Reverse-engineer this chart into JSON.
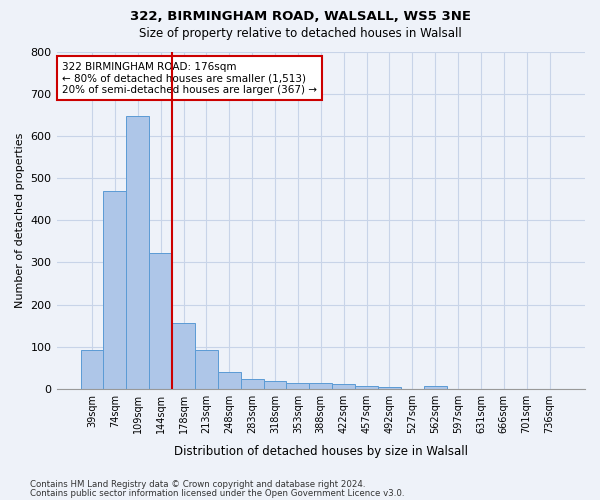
{
  "title1": "322, BIRMINGHAM ROAD, WALSALL, WS5 3NE",
  "title2": "Size of property relative to detached houses in Walsall",
  "xlabel": "Distribution of detached houses by size in Walsall",
  "ylabel": "Number of detached properties",
  "footnote1": "Contains HM Land Registry data © Crown copyright and database right 2024.",
  "footnote2": "Contains public sector information licensed under the Open Government Licence v3.0.",
  "bar_labels": [
    "39sqm",
    "74sqm",
    "109sqm",
    "144sqm",
    "178sqm",
    "213sqm",
    "248sqm",
    "283sqm",
    "318sqm",
    "353sqm",
    "388sqm",
    "422sqm",
    "457sqm",
    "492sqm",
    "527sqm",
    "562sqm",
    "597sqm",
    "631sqm",
    "666sqm",
    "701sqm",
    "736sqm"
  ],
  "bar_values": [
    93,
    470,
    648,
    323,
    157,
    92,
    40,
    23,
    18,
    14,
    14,
    11,
    7,
    5,
    0,
    6,
    0,
    0,
    0,
    0,
    0
  ],
  "bar_color": "#aec6e8",
  "bar_edge_color": "#5b9bd5",
  "background_color": "#eef2f9",
  "grid_color": "#c8d4e8",
  "vline_color": "#cc0000",
  "annotation_text": "322 BIRMINGHAM ROAD: 176sqm\n← 80% of detached houses are smaller (1,513)\n20% of semi-detached houses are larger (367) →",
  "annotation_box_color": "#ffffff",
  "annotation_box_edge": "#cc0000",
  "ylim": [
    0,
    800
  ],
  "yticks": [
    0,
    100,
    200,
    300,
    400,
    500,
    600,
    700,
    800
  ]
}
